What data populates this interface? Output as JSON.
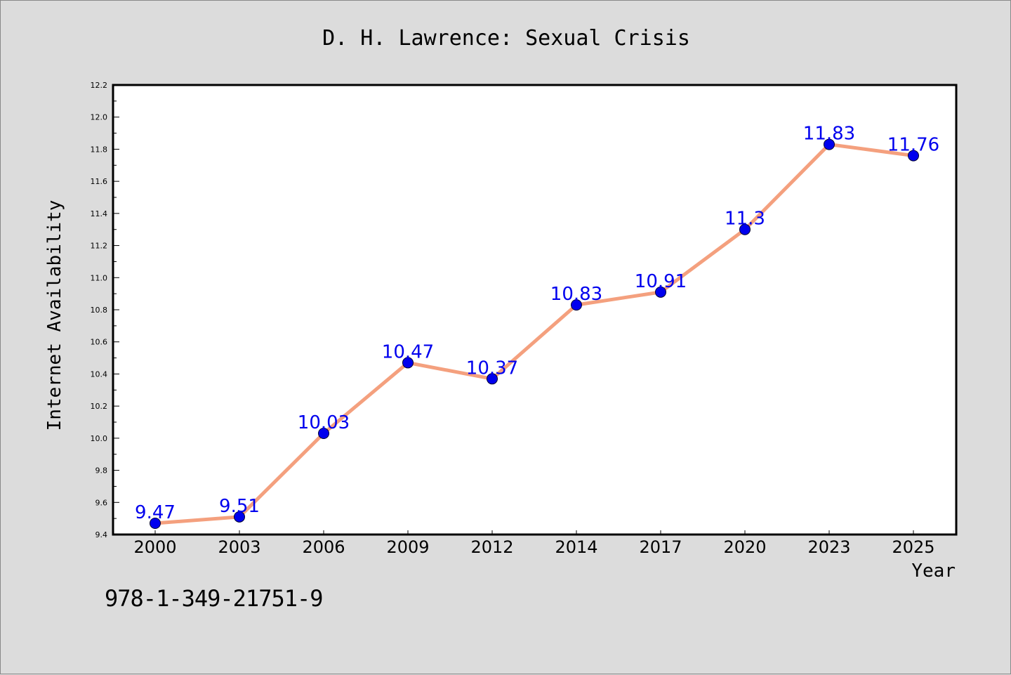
{
  "chart_data": {
    "type": "line",
    "title": "D. H. Lawrence: Sexual Crisis",
    "xlabel": "Year",
    "ylabel": "Internet Availability",
    "categories": [
      "2000",
      "2003",
      "2006",
      "2009",
      "2012",
      "2014",
      "2017",
      "2020",
      "2023",
      "2025"
    ],
    "series": [
      {
        "values": [
          9.47,
          9.51,
          10.03,
          10.47,
          10.37,
          10.83,
          10.91,
          11.3,
          11.83,
          11.76
        ],
        "labels": [
          "9.47",
          "9.51",
          "10.03",
          "10.47",
          "10.37",
          "10.83",
          "10.91",
          "11.3",
          "11.83",
          "11.76"
        ],
        "line_color": "#f4a07e",
        "marker_color": "#0000ee"
      }
    ],
    "ylim": [
      9.4,
      12.2
    ],
    "yticks": [
      "9.4",
      "9.6",
      "9.8",
      "10.0",
      "10.2",
      "10.4",
      "10.6",
      "10.8",
      "11.0",
      "11.2",
      "11.4",
      "11.6",
      "11.8",
      "12.0",
      "12.2"
    ],
    "grid": false,
    "label_color": "#0000ee"
  },
  "footer": {
    "isbn": "978-1-349-21751-9"
  }
}
